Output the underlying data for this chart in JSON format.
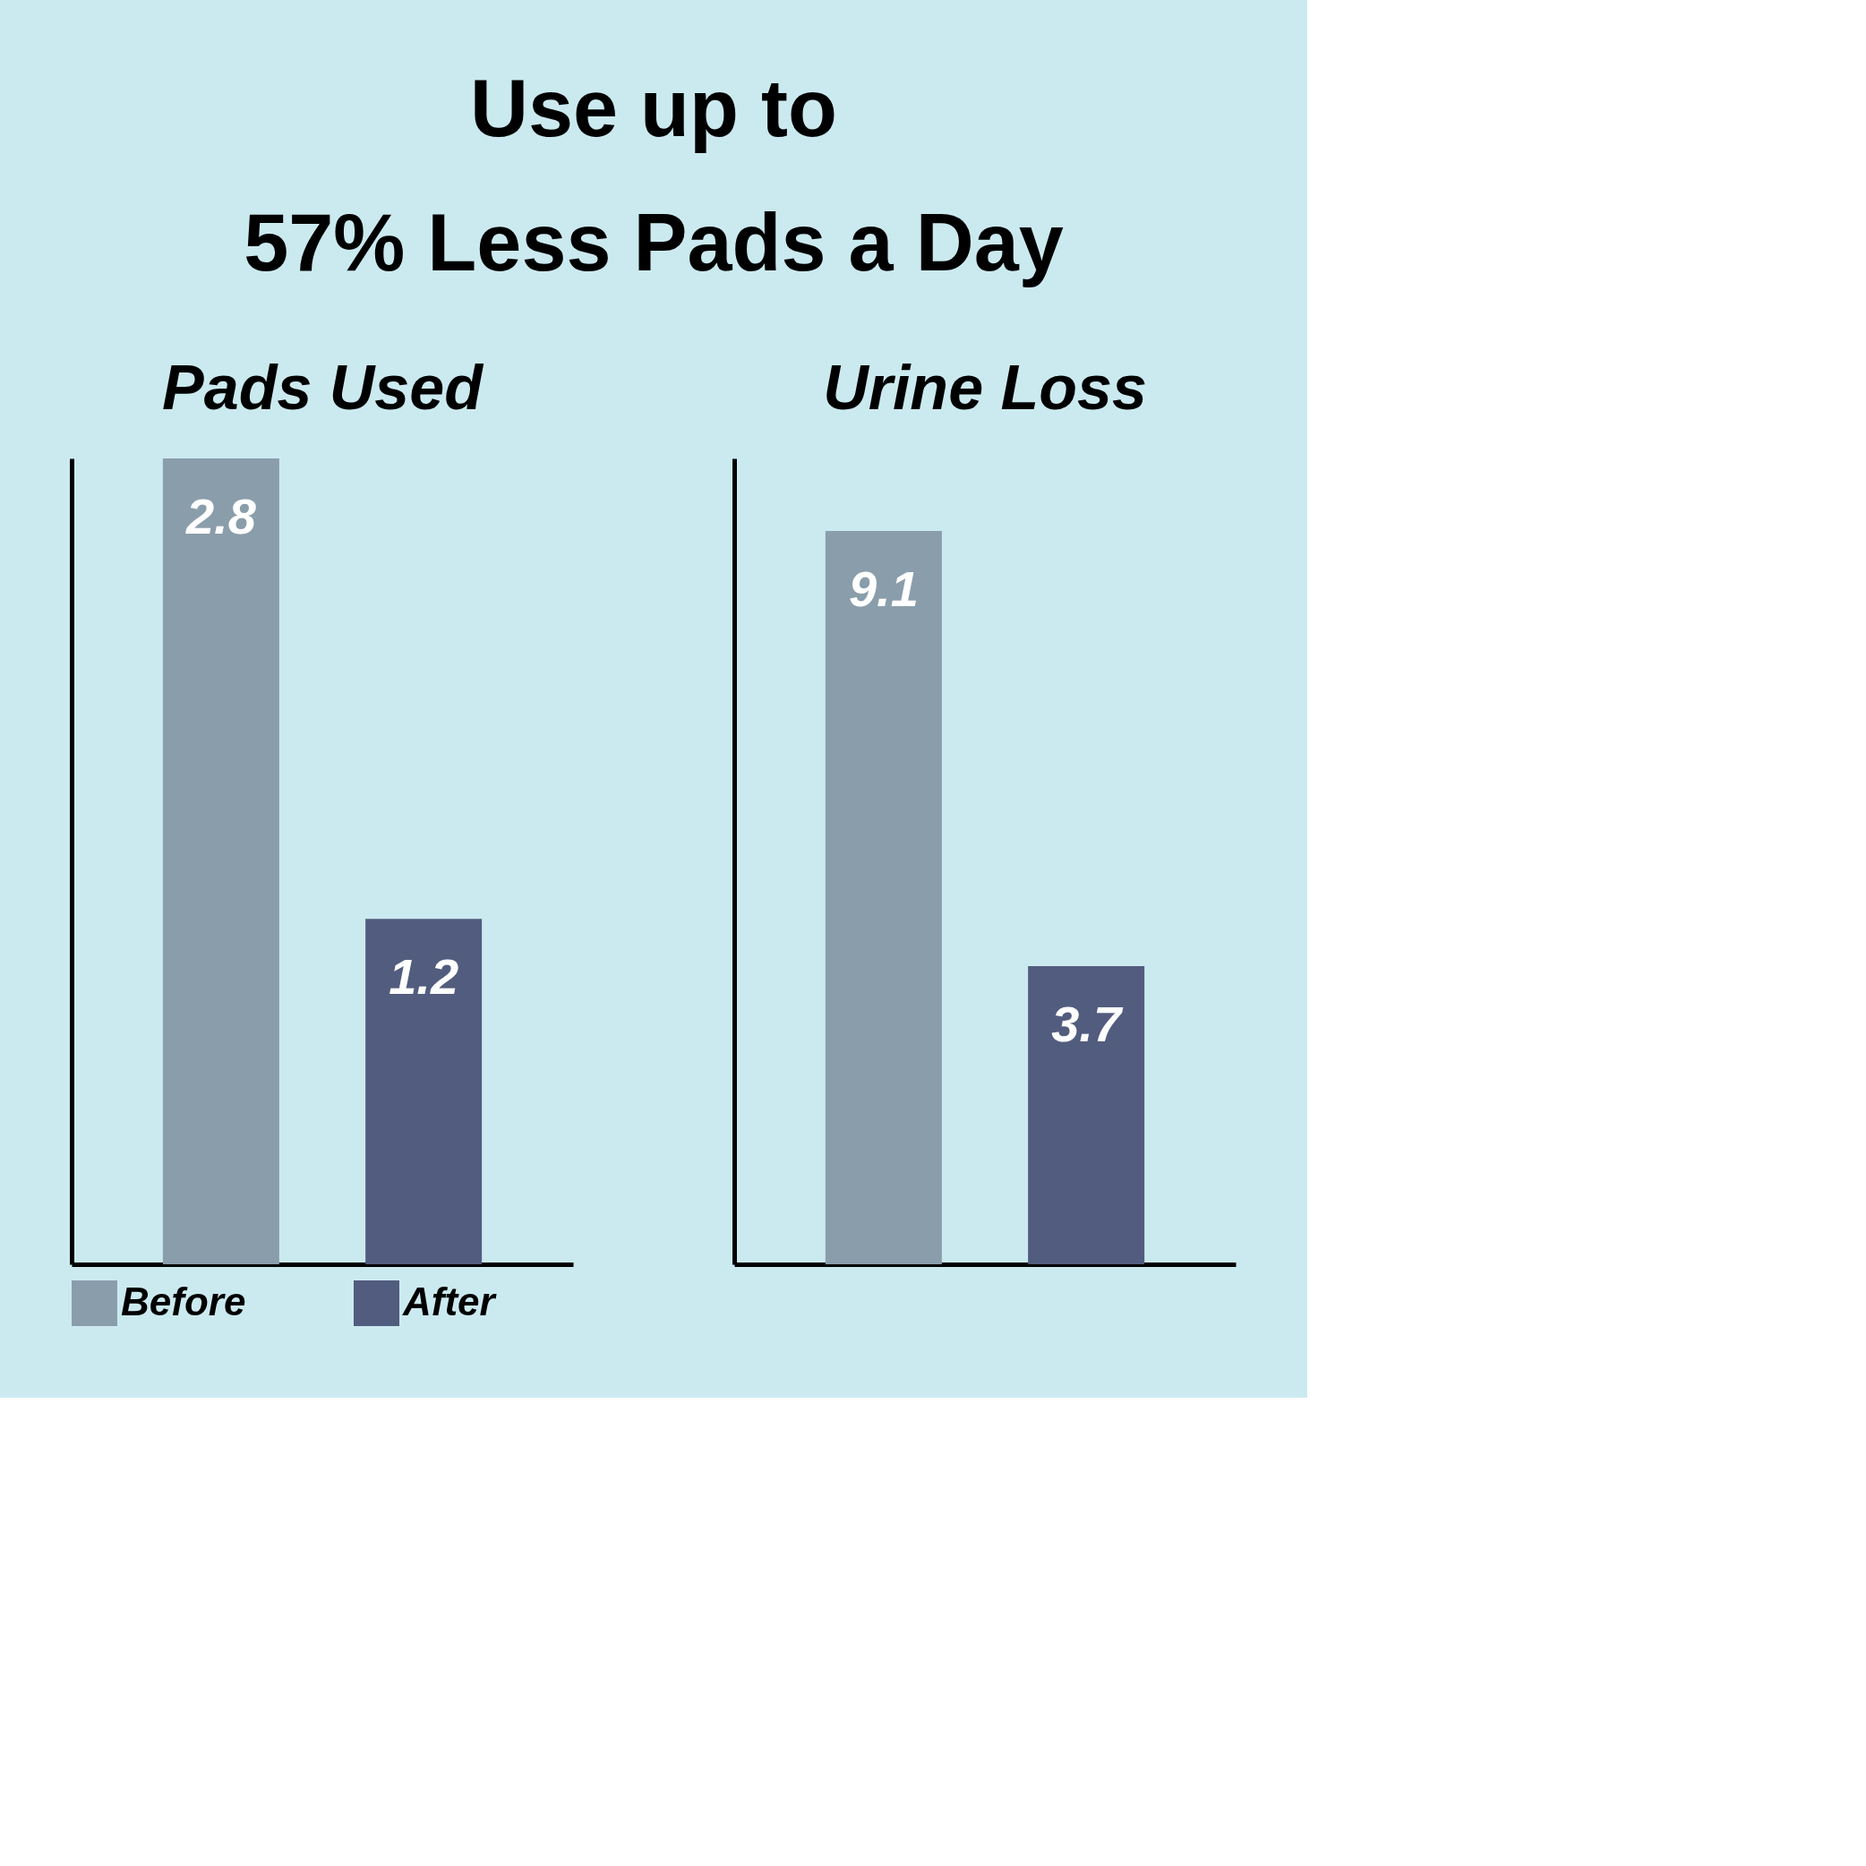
{
  "chart_data": [
    {
      "type": "bar",
      "title": "Pads Used",
      "annotations": [
        "Use up to",
        "57% Less Pads a Day"
      ],
      "categories": [
        null
      ],
      "data_labels": true,
      "tick_labels": false,
      "grid": false,
      "legend": "bottom",
      "series": [
        {
          "name": "Before",
          "color": "#8a9dab",
          "values": [
            2.8
          ]
        },
        {
          "name": "After",
          "color": "#525c7e",
          "values": [
            1.2
          ]
        }
      ]
    },
    {
      "type": "bar",
      "title": "Urine Loss",
      "categories": [
        null
      ],
      "data_labels": true,
      "tick_labels": false,
      "grid": false,
      "legend": "bottom",
      "series": [
        {
          "color": "#8a9dab",
          "values": [
            9.1
          ]
        },
        {
          "color": "#525c7e",
          "values": [
            3.7
          ]
        }
      ]
    }
  ]
}
